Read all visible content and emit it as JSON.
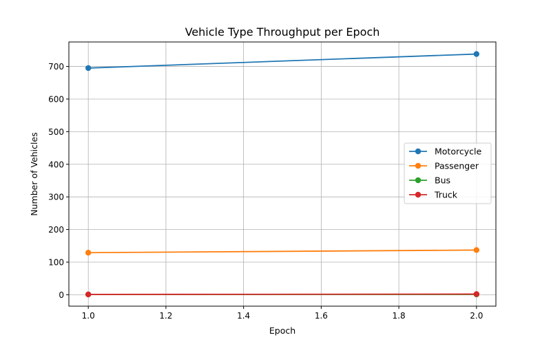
{
  "chart_data": {
    "type": "line",
    "title": "Vehicle Type Throughput per Epoch",
    "xlabel": "Epoch",
    "ylabel": "Number of Vehicles",
    "x": [
      1.0,
      2.0
    ],
    "xlim": [
      0.95,
      2.05
    ],
    "ylim": [
      -35,
      775
    ],
    "xticks": [
      1.0,
      1.2,
      1.4,
      1.6,
      1.8,
      2.0
    ],
    "xtick_labels": [
      "1.0",
      "1.2",
      "1.4",
      "1.6",
      "1.8",
      "2.0"
    ],
    "yticks": [
      0,
      100,
      200,
      300,
      400,
      500,
      600,
      700
    ],
    "ytick_labels": [
      "0",
      "100",
      "200",
      "300",
      "400",
      "500",
      "600",
      "700"
    ],
    "grid": true,
    "legend_position": "center-right",
    "series": [
      {
        "name": "Motorcycle",
        "color": "#1f77b4",
        "values": [
          695,
          738
        ]
      },
      {
        "name": "Passenger",
        "color": "#ff7f0e",
        "values": [
          129,
          137
        ]
      },
      {
        "name": "Bus",
        "color": "#2ca02c",
        "values": [
          1,
          1
        ]
      },
      {
        "name": "Truck",
        "color": "#d62728",
        "values": [
          1,
          2
        ]
      }
    ]
  }
}
